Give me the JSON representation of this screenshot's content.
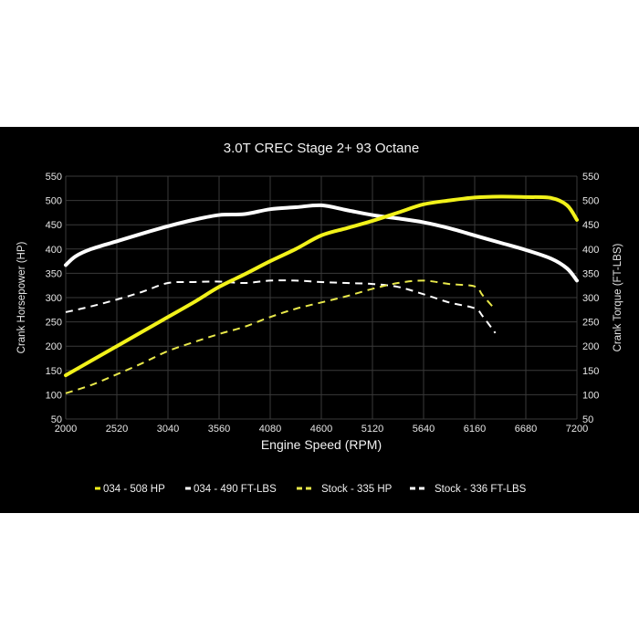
{
  "chart_data": {
    "type": "line",
    "title": "3.0T CREC Stage 2+ 93 Octane",
    "xlabel": "Engine Speed (RPM)",
    "ylabel_left": "Crank Horsepower (HP)",
    "ylabel_right": "Crank Torque (FT-LBS)",
    "xlim": [
      2000,
      7200
    ],
    "ylim": [
      50,
      550
    ],
    "x_ticks": [
      2000,
      2520,
      3040,
      3560,
      4080,
      4600,
      5120,
      5640,
      6160,
      6680,
      7200
    ],
    "y_ticks": [
      50,
      100,
      150,
      200,
      250,
      300,
      350,
      400,
      450,
      500,
      550
    ],
    "grid": true,
    "legend_position": "bottom",
    "series": [
      {
        "name": "034 - 508 HP",
        "color": "#f2f21a",
        "style": "solid",
        "x": [
          2000,
          2260,
          2520,
          2780,
          3040,
          3300,
          3560,
          3820,
          4080,
          4340,
          4600,
          4860,
          5120,
          5380,
          5640,
          5900,
          6160,
          6420,
          6680,
          6940,
          7100,
          7200
        ],
        "y": [
          140,
          170,
          200,
          230,
          260,
          290,
          322,
          348,
          375,
          400,
          428,
          443,
          458,
          475,
          492,
          500,
          506,
          508,
          507,
          505,
          490,
          460
        ]
      },
      {
        "name": "034 - 490 FT-LBS",
        "color": "#ffffff",
        "style": "solid",
        "x": [
          2000,
          2100,
          2260,
          2520,
          2780,
          3040,
          3300,
          3560,
          3820,
          4080,
          4340,
          4600,
          4860,
          5120,
          5380,
          5640,
          5900,
          6160,
          6420,
          6680,
          6940,
          7100,
          7200
        ],
        "y": [
          367,
          385,
          400,
          416,
          432,
          447,
          460,
          470,
          472,
          482,
          486,
          490,
          480,
          470,
          463,
          455,
          443,
          428,
          413,
          398,
          380,
          360,
          335
        ]
      },
      {
        "name": "Stock - 335 HP",
        "color": "#e8e84a",
        "style": "dashed",
        "x": [
          2000,
          2260,
          2520,
          2780,
          3040,
          3300,
          3560,
          3820,
          4080,
          4340,
          4600,
          4860,
          5120,
          5380,
          5640,
          5900,
          6160,
          6240,
          6370
        ],
        "y": [
          103,
          120,
          142,
          165,
          190,
          208,
          225,
          240,
          260,
          277,
          290,
          303,
          318,
          330,
          335,
          328,
          323,
          305,
          275
        ]
      },
      {
        "name": "Stock - 336 FT-LBS",
        "color": "#ffffff",
        "style": "dashed",
        "x": [
          2000,
          2260,
          2520,
          2780,
          3040,
          3300,
          3560,
          3820,
          4080,
          4340,
          4600,
          4860,
          5120,
          5380,
          5640,
          5900,
          6160,
          6240,
          6370
        ],
        "y": [
          270,
          282,
          296,
          312,
          330,
          332,
          333,
          330,
          335,
          335,
          332,
          330,
          328,
          322,
          307,
          290,
          278,
          262,
          227
        ]
      }
    ]
  },
  "legend": {
    "items": [
      {
        "label": "034 - 508 HP",
        "color": "#f2f21a",
        "style": "solid"
      },
      {
        "label": "034 - 490 FT-LBS",
        "color": "#ffffff",
        "style": "solid"
      },
      {
        "label": "Stock - 335 HP",
        "color": "#e8e84a",
        "style": "dashed"
      },
      {
        "label": "Stock - 336 FT-LBS",
        "color": "#ffffff",
        "style": "dashed"
      }
    ]
  },
  "colors": {
    "background": "#000000",
    "grid": "#3a3a3a",
    "page": "#ffffff"
  }
}
